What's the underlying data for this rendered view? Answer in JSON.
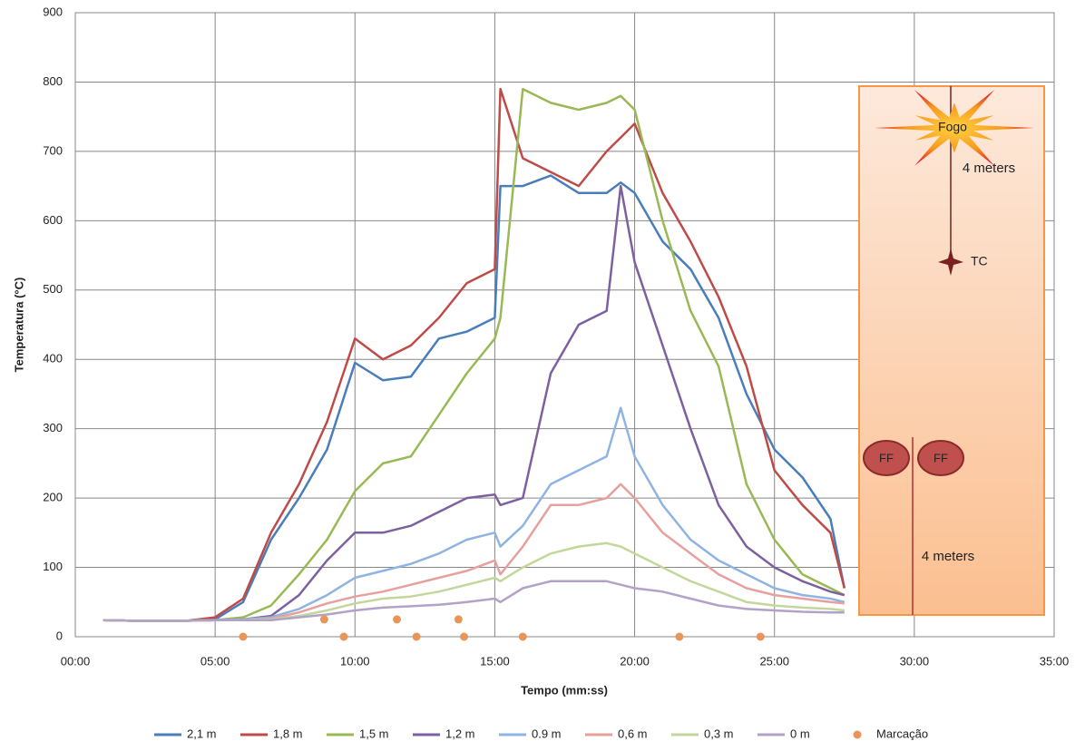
{
  "chart_data": {
    "type": "line",
    "y_label": "Temperatura (°C)",
    "x_label": "Tempo (mm:ss)",
    "xlim": [
      0,
      35
    ],
    "ylim": [
      0,
      900
    ],
    "xticks": [
      {
        "value": 0,
        "label": "00:00"
      },
      {
        "value": 5,
        "label": "05:00"
      },
      {
        "value": 10,
        "label": "10:00"
      },
      {
        "value": 15,
        "label": "15:00"
      },
      {
        "value": 20,
        "label": "20:00"
      },
      {
        "value": 25,
        "label": "25:00"
      },
      {
        "value": 30,
        "label": "30:00"
      },
      {
        "value": 35,
        "label": "35:00"
      }
    ],
    "yticks": [
      0,
      100,
      200,
      300,
      400,
      500,
      600,
      700,
      800,
      900
    ],
    "grid": true,
    "legend": "bottom",
    "x": [
      1,
      2,
      3,
      4,
      5,
      6,
      7,
      8,
      9,
      10,
      11,
      12,
      13,
      14,
      15,
      15.2,
      16,
      17,
      18,
      19,
      19.5,
      20,
      21,
      22,
      23,
      24,
      25,
      26,
      27,
      27.5
    ],
    "series": [
      {
        "name": "2,1 m",
        "color": "#4a7ebb",
        "values": [
          24,
          23,
          23,
          23,
          25,
          50,
          140,
          200,
          270,
          395,
          370,
          375,
          430,
          440,
          460,
          650,
          650,
          665,
          640,
          640,
          655,
          640,
          570,
          530,
          460,
          350,
          270,
          230,
          170,
          70
        ]
      },
      {
        "name": "1,8 m",
        "color": "#be4b48",
        "values": [
          24,
          23,
          23,
          23,
          28,
          55,
          150,
          220,
          310,
          430,
          400,
          420,
          460,
          510,
          530,
          790,
          690,
          670,
          650,
          700,
          720,
          740,
          640,
          570,
          490,
          390,
          240,
          190,
          150,
          70
        ]
      },
      {
        "name": "1,5 m",
        "color": "#98b954",
        "values": [
          24,
          23,
          23,
          23,
          24,
          28,
          45,
          90,
          140,
          210,
          250,
          260,
          320,
          380,
          430,
          460,
          790,
          770,
          760,
          770,
          780,
          760,
          600,
          470,
          390,
          220,
          140,
          90,
          70,
          60
        ]
      },
      {
        "name": "1,2 m",
        "color": "#7d60a0",
        "values": [
          24,
          23,
          23,
          23,
          24,
          25,
          30,
          60,
          110,
          150,
          150,
          160,
          180,
          200,
          205,
          190,
          200,
          380,
          450,
          470,
          650,
          540,
          420,
          300,
          190,
          130,
          100,
          80,
          65,
          60
        ]
      },
      {
        "name": "0.9 m",
        "color": "#8fb4e3",
        "values": [
          24,
          23,
          23,
          23,
          24,
          25,
          28,
          40,
          60,
          85,
          95,
          105,
          120,
          140,
          150,
          130,
          160,
          220,
          240,
          260,
          330,
          260,
          190,
          140,
          110,
          90,
          70,
          60,
          55,
          50
        ]
      },
      {
        "name": "0,6 m",
        "color": "#e6a09e",
        "values": [
          24,
          23,
          23,
          23,
          24,
          24,
          26,
          35,
          48,
          58,
          65,
          75,
          85,
          95,
          110,
          90,
          130,
          190,
          190,
          200,
          220,
          200,
          150,
          120,
          90,
          70,
          60,
          55,
          50,
          48
        ]
      },
      {
        "name": "0,3 m",
        "color": "#c3d69b",
        "values": [
          24,
          23,
          23,
          23,
          24,
          24,
          25,
          30,
          38,
          48,
          55,
          58,
          65,
          75,
          85,
          80,
          100,
          120,
          130,
          135,
          130,
          120,
          100,
          80,
          65,
          50,
          45,
          42,
          40,
          38
        ]
      },
      {
        "name": "0 m",
        "color": "#b3a2c7",
        "values": [
          24,
          23,
          23,
          23,
          24,
          24,
          24,
          28,
          32,
          38,
          42,
          44,
          46,
          50,
          55,
          50,
          70,
          80,
          80,
          80,
          75,
          70,
          65,
          55,
          45,
          40,
          38,
          36,
          35,
          35
        ]
      },
      {
        "name": "Marcação",
        "type": "scatter",
        "color": "#e8955a",
        "x": [
          6.0,
          8.9,
          9.6,
          11.5,
          12.2,
          13.7,
          13.9,
          16.0,
          21.6,
          24.5
        ],
        "values": [
          0,
          25,
          0,
          25,
          0,
          25,
          0,
          0,
          0,
          0
        ]
      }
    ],
    "inset": {
      "fire": "Fogo",
      "distance_top": "4 meters",
      "sensor": "TC",
      "firefighters": [
        "FF",
        "FF"
      ],
      "distance_bottom": "4 meters"
    }
  }
}
